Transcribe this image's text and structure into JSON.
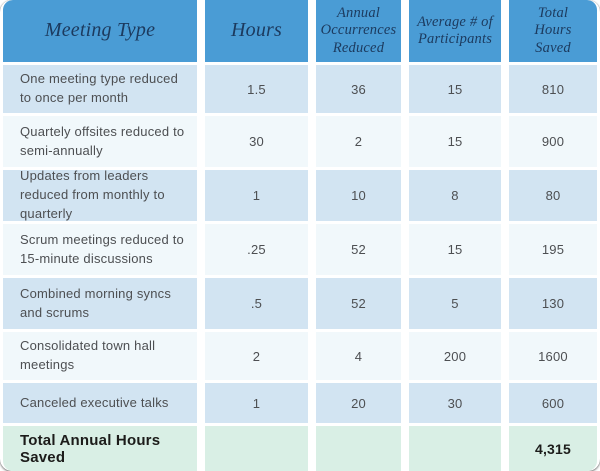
{
  "chart_data": {
    "type": "table",
    "title": "Meeting reduction hours-saved table",
    "columns": [
      "Meeting Type",
      "Hours",
      "Annual\nOccurrences\nReduced",
      "Average # of\nParticipants",
      "Total\nHours\nSaved"
    ],
    "rows": [
      [
        "One meeting type reduced to once per month",
        "1.5",
        "36",
        "15",
        "810"
      ],
      [
        "Quartely offsites reduced to semi-annually",
        "30",
        "2",
        "15",
        "900"
      ],
      [
        "Updates from leaders reduced from monthly to quarterly",
        "1",
        "10",
        "8",
        "80"
      ],
      [
        "Scrum meetings reduced to 15-minute discussions",
        ".25",
        "52",
        "15",
        "195"
      ],
      [
        "Combined morning syncs and scrums",
        ".5",
        "52",
        "5",
        "130"
      ],
      [
        "Consolidated town hall meetings",
        "2",
        "4",
        "200",
        "1600"
      ],
      [
        "Canceled executive talks",
        "1",
        "20",
        "30",
        "600"
      ]
    ],
    "footer": {
      "label": "Total Annual Hours Saved",
      "total": "4,315"
    },
    "colors": {
      "header_bg": "#4a9cd5",
      "header_text": "#1c3a5e",
      "row_blue": "#d2e4f2",
      "row_light": "#f1f8fb",
      "footer_bg": "#d9efe5",
      "body_text": "#4d4f52",
      "footer_text": "#1c1c1a",
      "gap": "#ffffff"
    }
  }
}
